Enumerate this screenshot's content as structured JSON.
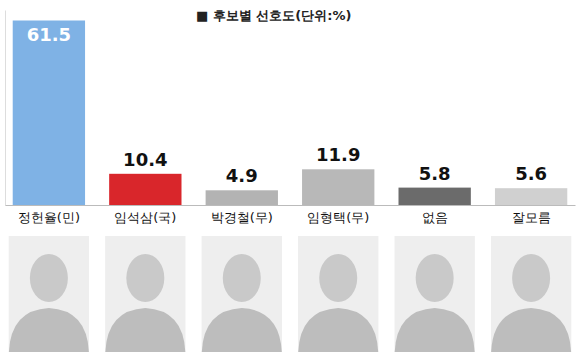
{
  "chart_data": {
    "type": "bar",
    "title": "■ 후보별 선호도(단위:%)",
    "categories": [
      "정헌율(민)",
      "임석삼(국)",
      "박경철(무)",
      "임형택(무)",
      "없음",
      "잘모름"
    ],
    "values": [
      61.5,
      10.4,
      4.9,
      11.9,
      5.8,
      5.6
    ],
    "colors": [
      "#7fb2e5",
      "#d9262b",
      "#b3b3b3",
      "#b8b8b8",
      "#6b6b6b",
      "#d0d0d0"
    ],
    "ylim": [
      0,
      65
    ],
    "data_labels": true,
    "tick_labels": "x",
    "grid": false
  }
}
